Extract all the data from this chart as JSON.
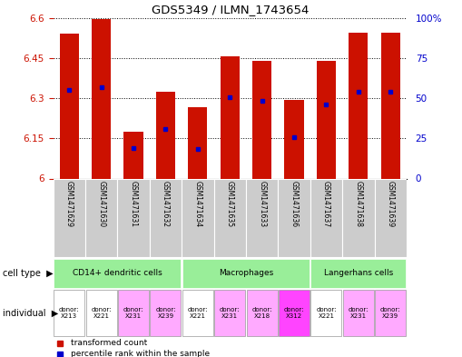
{
  "title": "GDS5349 / ILMN_1743654",
  "samples": [
    "GSM1471629",
    "GSM1471630",
    "GSM1471631",
    "GSM1471632",
    "GSM1471634",
    "GSM1471635",
    "GSM1471633",
    "GSM1471636",
    "GSM1471637",
    "GSM1471638",
    "GSM1471639"
  ],
  "bar_tops": [
    6.54,
    6.595,
    6.175,
    6.325,
    6.265,
    6.455,
    6.44,
    6.295,
    6.44,
    6.545,
    6.545
  ],
  "blue_positions": [
    6.33,
    6.34,
    6.115,
    6.185,
    6.11,
    6.305,
    6.29,
    6.155,
    6.275,
    6.325,
    6.325
  ],
  "bar_bottom": 6.0,
  "ymin": 6.0,
  "ymax": 6.6,
  "yticks_left": [
    6.0,
    6.15,
    6.3,
    6.45,
    6.6
  ],
  "yticks_right": [
    0,
    25,
    50,
    75,
    100
  ],
  "ytick_labels_left": [
    "6",
    "6.15",
    "6.3",
    "6.45",
    "6.6"
  ],
  "ytick_labels_right": [
    "0",
    "25",
    "50",
    "75",
    "100%"
  ],
  "bar_color": "#cc1100",
  "blue_color": "#0000cc",
  "sample_bg_color": "#cccccc",
  "cell_groups": [
    {
      "label": "CD14+ dendritic cells",
      "start": 0,
      "end": 4,
      "color": "#99ee99"
    },
    {
      "label": "Macrophages",
      "start": 4,
      "end": 8,
      "color": "#99ee99"
    },
    {
      "label": "Langerhans cells",
      "start": 8,
      "end": 11,
      "color": "#99ee99"
    }
  ],
  "ind_labels": [
    "donor:\nX213",
    "donor:\nX221",
    "donor:\nX231",
    "donor:\nX239",
    "donor:\nX221",
    "donor:\nX231",
    "donor:\nX218",
    "donor:\nX312",
    "donor:\nX221",
    "donor:\nX231",
    "donor:\nX239"
  ],
  "ind_colors": [
    "#ffffff",
    "#ffffff",
    "#ffaaff",
    "#ffaaff",
    "#ffffff",
    "#ffaaff",
    "#ffaaff",
    "#ff44ff",
    "#ffffff",
    "#ffaaff",
    "#ffaaff"
  ],
  "left_label_color": "#cc1100",
  "right_label_color": "#0000cc"
}
